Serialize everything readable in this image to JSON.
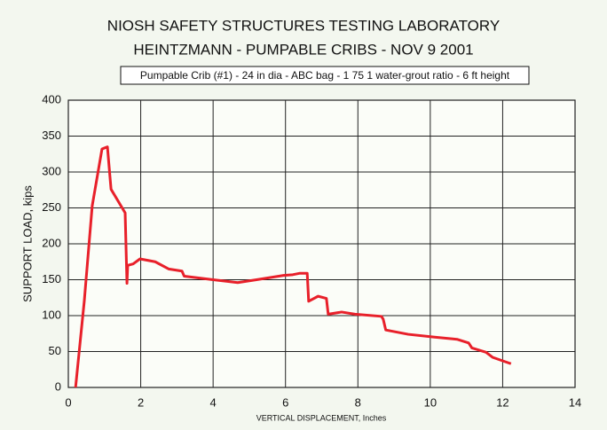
{
  "chart_data": {
    "type": "line",
    "title": "NIOSH SAFETY STRUCTURES TESTING LABORATORY",
    "subtitle": "HEINTZMANN - PUMPABLE CRIBS - NOV 9 2001",
    "annotation": "Pumpable Crib (#1) - 24 in dia - ABC bag - 1 75 1 water-grout ratio - 6 ft height",
    "xlabel": "VERTICAL DISPLACEMENT, Inches",
    "ylabel": "SUPPORT LOAD, kips",
    "x": [
      0.2,
      0.44,
      0.66,
      0.93,
      1.08,
      1.18,
      1.57,
      1.62,
      1.64,
      1.79,
      1.98,
      2.4,
      2.77,
      3.14,
      3.2,
      4.0,
      4.68,
      5.2,
      5.95,
      6.2,
      6.4,
      6.6,
      6.64,
      6.9,
      7.13,
      7.18,
      7.55,
      7.92,
      8.65,
      8.7,
      8.77,
      9.39,
      10.12,
      10.74,
      11.06,
      11.15,
      11.54,
      11.72,
      12.23
    ],
    "series": [
      {
        "color": "#e8202a",
        "values": [
          0,
          120,
          253,
          332,
          335,
          276,
          243,
          145,
          170,
          172,
          179,
          175,
          165,
          162,
          155,
          150,
          146,
          150,
          156,
          157,
          159,
          159,
          120,
          127,
          124,
          102,
          105,
          102,
          99,
          95,
          80,
          74,
          70,
          67,
          62,
          55,
          49,
          42,
          33
        ]
      }
    ],
    "xlim": [
      0,
      14
    ],
    "xticks": [
      0,
      2,
      4,
      6,
      8,
      10,
      12,
      14
    ],
    "ylim": [
      0,
      400
    ],
    "yticks": [
      0,
      50,
      100,
      150,
      200,
      250,
      300,
      350,
      400
    ],
    "grid": true
  }
}
